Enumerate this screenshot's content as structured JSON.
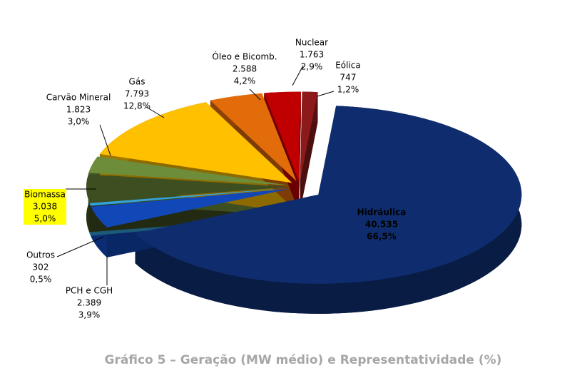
{
  "chart_data": {
    "type": "pie3d",
    "title": "Gráfico 5 – Geração (MW médio) e Representatividade (%)",
    "categories": [
      "Hidráulica",
      "PCH e CGH",
      "Outros",
      "Biomassa",
      "Carvão Mineral",
      "Gás",
      "Óleo e Bicomb.",
      "Nuclear",
      "Eólica"
    ],
    "values": [
      40535,
      2389,
      302,
      3038,
      1823,
      7793,
      2588,
      1763,
      747
    ],
    "value_labels": [
      "40.535",
      "2.389",
      "302",
      "3.038",
      "1.823",
      "7.793",
      "2.588",
      "1.763",
      "747"
    ],
    "percents": [
      66.5,
      3.9,
      0.5,
      5.0,
      3.0,
      12.8,
      4.2,
      2.9,
      1.2
    ],
    "percent_labels": [
      "66,5%",
      "3,9%",
      "0,5%",
      "5,0%",
      "3,0%",
      "12,8%",
      "4,2%",
      "2,9%",
      "1,2%"
    ],
    "colors": [
      "#0f2d6e",
      "#1247b8",
      "#33a3dc",
      "#3d4f20",
      "#6e8d3b",
      "#ffc000",
      "#e36c0a",
      "#c00000",
      "#8c1a1a"
    ]
  }
}
